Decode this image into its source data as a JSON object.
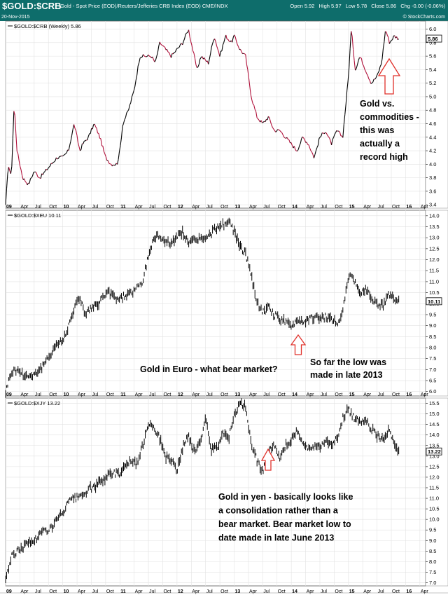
{
  "header": {
    "symbol": "$GOLD:$CRB",
    "description": "Gold - Spot Price (EOD)/Reuters/Jefferies CRB Index (EOD)  CME/INDX",
    "date": "20-Nov-2015",
    "watermark": "© StockCharts.com",
    "ohlc": {
      "open": "Open 5.92",
      "high": "High 5.97",
      "low": "Low 5.78",
      "close": "Close 5.86",
      "chg": "Chg -0.00 (-0.06%)"
    }
  },
  "annotations": {
    "p1_lines": [
      "Gold vs.",
      "commodities -",
      "this was",
      "actually a",
      "record high"
    ],
    "p2_left": "Gold in Euro - what bear market?",
    "p2_lines": [
      "So far the low was",
      "made in late 2013"
    ],
    "p3_lines": [
      "Gold in yen - basically looks like",
      "a consolidation rather than a",
      "bear market. Bear market low to",
      "date made in late June 2013"
    ]
  },
  "colors": {
    "header_bg": "#0e6d6b",
    "line_up": "#000000",
    "line_down": "#b0103a",
    "arrow": "#e0302a"
  },
  "x_axis": {
    "labels": [
      {
        "t": 2009.0,
        "text": "09",
        "bold": true
      },
      {
        "t": 2009.25,
        "text": "Apr"
      },
      {
        "t": 2009.5,
        "text": "Jul"
      },
      {
        "t": 2009.75,
        "text": "Oct"
      },
      {
        "t": 2010.0,
        "text": "10",
        "bold": true
      },
      {
        "t": 2010.25,
        "text": "Apr"
      },
      {
        "t": 2010.5,
        "text": "Jul"
      },
      {
        "t": 2010.75,
        "text": "Oct"
      },
      {
        "t": 2011.0,
        "text": "11",
        "bold": true
      },
      {
        "t": 2011.25,
        "text": "Apr"
      },
      {
        "t": 2011.5,
        "text": "Jul"
      },
      {
        "t": 2011.75,
        "text": "Oct"
      },
      {
        "t": 2012.0,
        "text": "12",
        "bold": true
      },
      {
        "t": 2012.25,
        "text": "Apr"
      },
      {
        "t": 2012.5,
        "text": "Jul"
      },
      {
        "t": 2012.75,
        "text": "Oct"
      },
      {
        "t": 2013.0,
        "text": "13",
        "bold": true
      },
      {
        "t": 2013.25,
        "text": "Apr"
      },
      {
        "t": 2013.5,
        "text": "Jul"
      },
      {
        "t": 2013.75,
        "text": "Oct"
      },
      {
        "t": 2014.0,
        "text": "14",
        "bold": true
      },
      {
        "t": 2014.25,
        "text": "Apr"
      },
      {
        "t": 2014.5,
        "text": "Jul"
      },
      {
        "t": 2014.75,
        "text": "Oct"
      },
      {
        "t": 2015.0,
        "text": "15",
        "bold": true
      },
      {
        "t": 2015.25,
        "text": "Apr"
      },
      {
        "t": 2015.5,
        "text": "Jul"
      },
      {
        "t": 2015.75,
        "text": "Oct"
      },
      {
        "t": 2016.0,
        "text": "16",
        "bold": true
      },
      {
        "t": 2016.25,
        "text": "Apr"
      }
    ],
    "range": [
      2009.0,
      2016.35
    ]
  },
  "chart_data": [
    {
      "type": "line",
      "label": "$GOLD:$CRB (Weekly) 5.86",
      "last_value": "5.86",
      "ylim": [
        3.35,
        6.12
      ],
      "yticks": [
        "3.4",
        "3.6",
        "3.8",
        "4.0",
        "4.2",
        "4.4",
        "4.6",
        "4.8",
        "5.0",
        "5.2",
        "5.4",
        "5.6",
        "5.8",
        "6.0"
      ],
      "x": [
        2009.0,
        2009.05,
        2009.1,
        2009.15,
        2009.2,
        2009.3,
        2009.4,
        2009.5,
        2009.6,
        2009.7,
        2009.8,
        2009.9,
        2010.0,
        2010.1,
        2010.2,
        2010.3,
        2010.35,
        2010.45,
        2010.55,
        2010.65,
        2010.75,
        2010.85,
        2010.95,
        2011.0,
        2011.05,
        2011.15,
        2011.25,
        2011.35,
        2011.45,
        2011.55,
        2011.62,
        2011.7,
        2011.8,
        2011.9,
        2012.0,
        2012.1,
        2012.2,
        2012.35,
        2012.42,
        2012.55,
        2012.65,
        2012.75,
        2012.85,
        2012.95,
        2013.0,
        2013.1,
        2013.2,
        2013.3,
        2013.4,
        2013.5,
        2013.6,
        2013.7,
        2013.8,
        2013.9,
        2014.0,
        2014.1,
        2014.2,
        2014.3,
        2014.4,
        2014.5,
        2014.6,
        2014.7,
        2014.8,
        2014.9,
        2015.0,
        2015.05,
        2015.12,
        2015.2,
        2015.3,
        2015.4,
        2015.5,
        2015.58,
        2015.65,
        2015.72,
        2015.8,
        2015.88
      ],
      "y": [
        3.4,
        4.0,
        3.8,
        4.9,
        4.2,
        3.8,
        3.7,
        3.9,
        3.8,
        3.9,
        4.0,
        4.1,
        4.1,
        4.2,
        4.6,
        4.2,
        4.3,
        4.4,
        4.6,
        4.4,
        4.1,
        4.0,
        4.0,
        4.2,
        4.6,
        4.8,
        5.1,
        5.6,
        5.6,
        5.6,
        5.5,
        5.8,
        5.7,
        5.6,
        5.7,
        5.8,
        6.0,
        5.4,
        5.6,
        5.5,
        5.9,
        5.6,
        5.9,
        5.8,
        5.9,
        5.7,
        5.6,
        5.0,
        4.7,
        4.6,
        4.7,
        4.5,
        4.5,
        4.4,
        4.3,
        4.2,
        4.4,
        4.3,
        4.1,
        4.4,
        4.5,
        4.3,
        4.5,
        4.4,
        5.3,
        6.0,
        5.4,
        5.6,
        5.4,
        5.2,
        5.3,
        5.5,
        6.0,
        5.8,
        5.9,
        5.86
      ]
    },
    {
      "type": "bar",
      "label": "$GOLD:$XEU 10.11",
      "last_value": "10.11",
      "ylim": [
        5.8,
        14.25
      ],
      "yticks": [
        "6.0",
        "6.5",
        "7.0",
        "7.5",
        "8.0",
        "8.5",
        "9.0",
        "9.5",
        "10.0",
        "10.5",
        "11.0",
        "11.5",
        "12.0",
        "12.5",
        "13.0",
        "13.5",
        "14.0"
      ],
      "x": [
        2009.0,
        2009.1,
        2009.2,
        2009.3,
        2009.4,
        2009.5,
        2009.6,
        2009.7,
        2009.8,
        2009.9,
        2010.0,
        2010.1,
        2010.2,
        2010.3,
        2010.4,
        2010.5,
        2010.6,
        2010.7,
        2010.8,
        2010.9,
        2011.0,
        2011.1,
        2011.2,
        2011.3,
        2011.4,
        2011.5,
        2011.6,
        2011.7,
        2011.8,
        2011.9,
        2012.0,
        2012.1,
        2012.2,
        2012.3,
        2012.4,
        2012.5,
        2012.6,
        2012.7,
        2012.8,
        2012.9,
        2013.0,
        2013.1,
        2013.2,
        2013.3,
        2013.4,
        2013.5,
        2013.6,
        2013.7,
        2013.8,
        2013.9,
        2014.0,
        2014.1,
        2014.2,
        2014.3,
        2014.4,
        2014.5,
        2014.6,
        2014.7,
        2014.8,
        2014.9,
        2015.0,
        2015.1,
        2015.2,
        2015.3,
        2015.4,
        2015.5,
        2015.6,
        2015.7,
        2015.8,
        2015.88
      ],
      "y": [
        6.0,
        6.9,
        7.0,
        6.8,
        6.7,
        6.8,
        7.0,
        7.3,
        7.8,
        8.2,
        8.3,
        9.0,
        9.8,
        10.3,
        9.5,
        9.8,
        9.9,
        10.3,
        10.5,
        10.3,
        10.2,
        10.4,
        10.5,
        10.7,
        11.0,
        12.2,
        13.0,
        13.1,
        12.8,
        12.8,
        13.0,
        13.3,
        12.7,
        12.9,
        13.0,
        12.9,
        13.2,
        13.5,
        13.6,
        13.7,
        13.3,
        12.6,
        12.3,
        11.2,
        10.1,
        9.6,
        9.8,
        9.5,
        9.3,
        9.2,
        8.9,
        9.3,
        9.2,
        9.3,
        9.4,
        9.3,
        9.4,
        9.3,
        9.1,
        9.6,
        11.3,
        11.0,
        10.5,
        10.7,
        10.3,
        10.0,
        9.9,
        10.5,
        10.2,
        10.11
      ]
    },
    {
      "type": "bar",
      "label": "$GOLD:$XJY 13.22",
      "last_value": "13.22",
      "ylim": [
        6.85,
        15.75
      ],
      "yticks": [
        "7.0",
        "7.5",
        "8.0",
        "8.5",
        "9.0",
        "9.5",
        "10.0",
        "10.5",
        "11.0",
        "11.5",
        "12.0",
        "12.5",
        "13.0",
        "13.5",
        "14.0",
        "14.5",
        "15.0",
        "15.5"
      ],
      "x": [
        2009.0,
        2009.1,
        2009.2,
        2009.3,
        2009.4,
        2009.5,
        2009.6,
        2009.7,
        2009.8,
        2009.9,
        2010.0,
        2010.1,
        2010.2,
        2010.3,
        2010.4,
        2010.5,
        2010.6,
        2010.7,
        2010.8,
        2010.9,
        2011.0,
        2011.1,
        2011.2,
        2011.3,
        2011.4,
        2011.5,
        2011.6,
        2011.7,
        2011.8,
        2011.9,
        2012.0,
        2012.1,
        2012.2,
        2012.3,
        2012.4,
        2012.5,
        2012.6,
        2012.7,
        2012.8,
        2012.9,
        2013.0,
        2013.1,
        2013.2,
        2013.3,
        2013.4,
        2013.5,
        2013.6,
        2013.7,
        2013.8,
        2013.9,
        2014.0,
        2014.1,
        2014.2,
        2014.3,
        2014.4,
        2014.5,
        2014.6,
        2014.7,
        2014.8,
        2014.9,
        2015.0,
        2015.1,
        2015.2,
        2015.3,
        2015.4,
        2015.5,
        2015.6,
        2015.7,
        2015.8,
        2015.88
      ],
      "y": [
        7.2,
        8.2,
        8.5,
        8.7,
        8.9,
        9.0,
        9.3,
        9.5,
        9.6,
        10.0,
        10.3,
        10.8,
        11.0,
        11.0,
        11.3,
        11.5,
        11.6,
        11.9,
        12.1,
        12.2,
        12.2,
        12.6,
        12.8,
        12.6,
        13.5,
        14.6,
        14.4,
        13.8,
        13.0,
        12.8,
        12.3,
        13.4,
        14.0,
        13.2,
        13.6,
        14.8,
        13.3,
        13.4,
        14.2,
        13.8,
        15.0,
        15.5,
        15.3,
        13.6,
        12.8,
        12.3,
        13.2,
        13.5,
        12.8,
        13.5,
        13.8,
        14.2,
        13.6,
        13.4,
        13.4,
        13.5,
        13.7,
        13.5,
        13.8,
        14.8,
        15.2,
        14.8,
        14.6,
        14.8,
        14.3,
        14.0,
        13.8,
        14.2,
        13.6,
        13.22
      ]
    }
  ]
}
